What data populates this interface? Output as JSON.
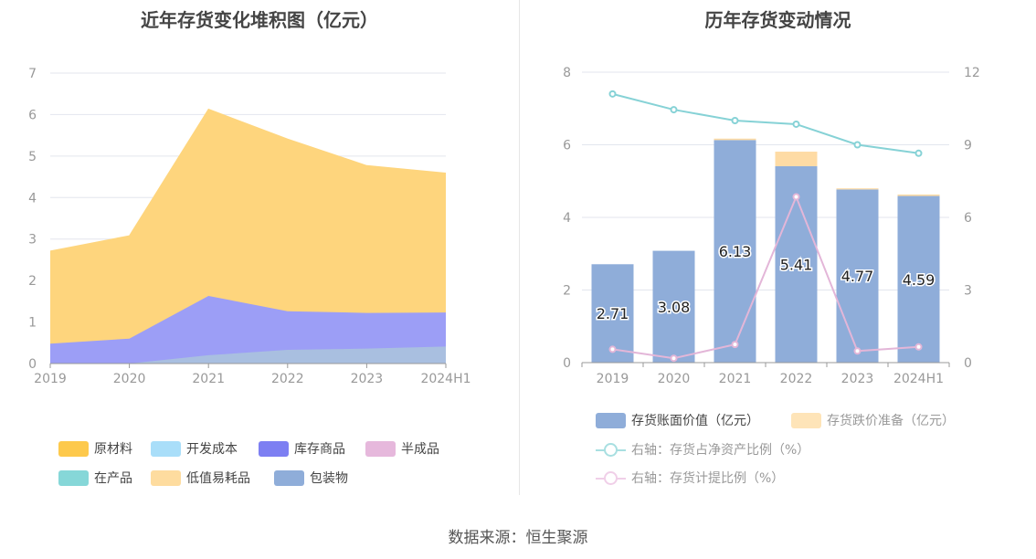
{
  "left_chart": {
    "title": "近年存货变化堆积图（亿元）",
    "legend": [
      "原材料",
      "开发成本",
      "库存商品",
      "半成品",
      "在产品",
      "低值易耗品",
      "包装物"
    ]
  },
  "right_chart": {
    "title": "历年存货变动情况",
    "legend": [
      "存货账面价值（亿元）",
      "存货跌价准备（亿元）",
      "右轴：存货占净资产比例（%）",
      "右轴：存货计提比例（%）"
    ]
  },
  "source": "数据来源：恒生聚源",
  "colors": {
    "原材料": "#fdd17a",
    "开发成本": "#a9def9",
    "库存商品": "#8e8ff4",
    "半成品": "#e6b8dc",
    "在产品": "#86d7d8",
    "低值易耗品": "#fedc9f",
    "包装物": "#8fadd9",
    "book_value": "#8fadd9",
    "impairment": "#fee4b8",
    "ratio_net_assets": "#86d2d6",
    "provision_ratio": "#e3b6d8"
  },
  "chart_data": [
    {
      "type": "area",
      "stacked": true,
      "title": "近年存货变化堆积图（亿元）",
      "x": [
        "2019",
        "2020",
        "2021",
        "2022",
        "2023",
        "2024H1"
      ],
      "ylim": [
        0,
        7
      ],
      "yticks": [
        0,
        1,
        2,
        3,
        4,
        5,
        6,
        7
      ],
      "legend_position": "bottom",
      "series": [
        {
          "name": "包装物",
          "values": [
            0.0,
            0.0,
            0.2,
            0.33,
            0.36,
            0.41
          ]
        },
        {
          "name": "库存商品",
          "values": [
            0.48,
            0.6,
            1.43,
            0.93,
            0.86,
            0.82
          ]
        },
        {
          "name": "原材料",
          "values": [
            2.23,
            2.48,
            4.5,
            4.15,
            3.55,
            3.36
          ]
        }
      ]
    },
    {
      "type": "bar",
      "title": "历年存货变动情况",
      "categories": [
        "2019",
        "2020",
        "2021",
        "2022",
        "2023",
        "2024H1"
      ],
      "ylim": [
        0,
        8
      ],
      "yticks": [
        0,
        2,
        4,
        6,
        8
      ],
      "y2lim": [
        0,
        12
      ],
      "y2ticks": [
        0,
        3,
        6,
        9,
        12
      ],
      "legend_position": "bottom",
      "series": [
        {
          "name": "存货账面价值（亿元）",
          "type": "bar",
          "values": [
            2.71,
            3.08,
            6.13,
            5.41,
            4.77,
            4.59
          ],
          "labels": [
            "2.71",
            "3.08",
            "6.13",
            "5.41",
            "4.77",
            "4.59"
          ]
        },
        {
          "name": "存货跌价准备（亿元）",
          "type": "bar",
          "stacked_on": "存货账面价值（亿元）",
          "values": [
            0.0,
            0.0,
            0.04,
            0.4,
            0.03,
            0.04
          ]
        },
        {
          "name": "右轴：存货占净资产比例（%）",
          "type": "line",
          "axis": "right",
          "values": [
            11.1,
            10.45,
            10.0,
            9.85,
            9.0,
            8.65
          ]
        },
        {
          "name": "右轴：存货计提比例（%）",
          "type": "line",
          "axis": "right",
          "values": [
            0.55,
            0.18,
            0.75,
            6.85,
            0.48,
            0.65
          ]
        }
      ]
    }
  ]
}
